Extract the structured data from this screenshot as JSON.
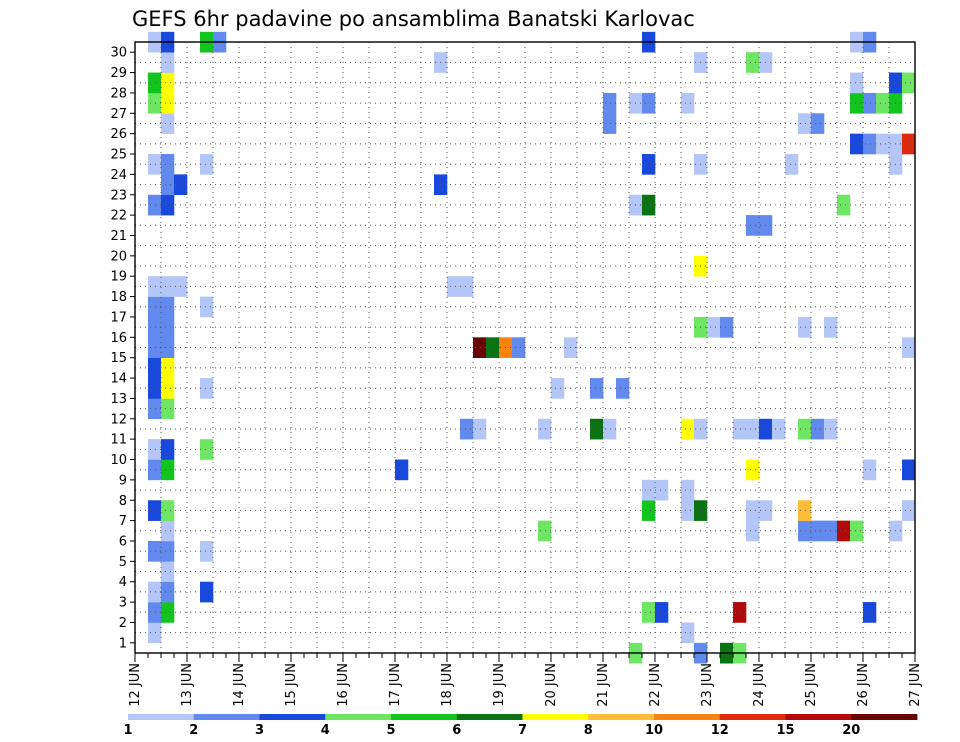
{
  "chart_data": {
    "type": "heatmap",
    "title": "GEFS 6hr padavine po ansamblima Banatski Karlovac",
    "xlabel": "",
    "ylabel": "",
    "x_tick_labels": [
      "12 JUN",
      "13 JUN",
      "14 JUN",
      "15 JUN",
      "16 JUN",
      "17 JUN",
      "18 JUN",
      "19 JUN",
      "20 JUN",
      "21 JUN",
      "22 JUN",
      "23 JUN",
      "24 JUN",
      "25 JUN",
      "26 JUN",
      "27 JUN"
    ],
    "y_tick_labels": [
      "1",
      "2",
      "3",
      "4",
      "5",
      "6",
      "7",
      "8",
      "9",
      "10",
      "11",
      "12",
      "13",
      "14",
      "15",
      "16",
      "17",
      "18",
      "19",
      "20",
      "21",
      "22",
      "23",
      "24",
      "25",
      "26",
      "27",
      "28",
      "29",
      "30"
    ],
    "x_range_steps": [
      0,
      60
    ],
    "y_range": [
      0,
      30
    ],
    "grid": true,
    "legend_placement": "bottom",
    "colorbar": {
      "labels": [
        "1",
        "2",
        "3",
        "4",
        "5",
        "6",
        "7",
        "8",
        "10",
        "12",
        "15",
        "20"
      ],
      "colors": [
        "#b3c6f7",
        "#6189ee",
        "#1848dc",
        "#6ee663",
        "#12c51d",
        "#0b7314",
        "#ffff00",
        "#ffbd39",
        "#f98311",
        "#dd2b0e",
        "#b00a0a",
        "#6a0404"
      ]
    },
    "value_encoding": "z = colour class index 1-12 (1 = 1-2 mm ... 12 = over 20 mm); x = 6-hour step from 12 JUN 00Z; y = ensemble member",
    "cells": [
      {
        "x": 1,
        "y": 1,
        "z": 1
      },
      {
        "x": 1,
        "y": 2,
        "z": 2
      },
      {
        "x": 2,
        "y": 2,
        "z": 5
      },
      {
        "x": 1,
        "y": 3,
        "z": 1
      },
      {
        "x": 2,
        "y": 3,
        "z": 2
      },
      {
        "x": 2,
        "y": 4,
        "z": 1
      },
      {
        "x": 1,
        "y": 5,
        "z": 2
      },
      {
        "x": 2,
        "y": 5,
        "z": 2
      },
      {
        "x": 2,
        "y": 6,
        "z": 1
      },
      {
        "x": 1,
        "y": 7,
        "z": 3
      },
      {
        "x": 2,
        "y": 7,
        "z": 4
      },
      {
        "x": 1,
        "y": 9,
        "z": 2
      },
      {
        "x": 2,
        "y": 9,
        "z": 5
      },
      {
        "x": 1,
        "y": 10,
        "z": 1
      },
      {
        "x": 2,
        "y": 10,
        "z": 3
      },
      {
        "x": 1,
        "y": 12,
        "z": 2
      },
      {
        "x": 2,
        "y": 12,
        "z": 4
      },
      {
        "x": 1,
        "y": 13,
        "z": 3
      },
      {
        "x": 2,
        "y": 13,
        "z": 7
      },
      {
        "x": 1,
        "y": 14,
        "z": 3
      },
      {
        "x": 2,
        "y": 14,
        "z": 7
      },
      {
        "x": 1,
        "y": 15,
        "z": 2
      },
      {
        "x": 2,
        "y": 15,
        "z": 2
      },
      {
        "x": 1,
        "y": 16,
        "z": 2
      },
      {
        "x": 2,
        "y": 16,
        "z": 2
      },
      {
        "x": 1,
        "y": 17,
        "z": 2
      },
      {
        "x": 2,
        "y": 17,
        "z": 2
      },
      {
        "x": 1,
        "y": 18,
        "z": 1
      },
      {
        "x": 2,
        "y": 18,
        "z": 1
      },
      {
        "x": 3,
        "y": 18,
        "z": 1
      },
      {
        "x": 1,
        "y": 22,
        "z": 2
      },
      {
        "x": 2,
        "y": 22,
        "z": 3
      },
      {
        "x": 2,
        "y": 23,
        "z": 2
      },
      {
        "x": 3,
        "y": 23,
        "z": 3
      },
      {
        "x": 1,
        "y": 24,
        "z": 1
      },
      {
        "x": 2,
        "y": 24,
        "z": 2
      },
      {
        "x": 2,
        "y": 26,
        "z": 1
      },
      {
        "x": 1,
        "y": 27,
        "z": 4
      },
      {
        "x": 2,
        "y": 27,
        "z": 7
      },
      {
        "x": 1,
        "y": 28,
        "z": 5
      },
      {
        "x": 2,
        "y": 28,
        "z": 7
      },
      {
        "x": 2,
        "y": 29,
        "z": 1
      },
      {
        "x": 1,
        "y": 30,
        "z": 1
      },
      {
        "x": 2,
        "y": 30,
        "z": 3
      },
      {
        "x": 5,
        "y": 3,
        "z": 3
      },
      {
        "x": 5,
        "y": 5,
        "z": 1
      },
      {
        "x": 5,
        "y": 10,
        "z": 4
      },
      {
        "x": 5,
        "y": 13,
        "z": 1
      },
      {
        "x": 5,
        "y": 17,
        "z": 1
      },
      {
        "x": 5,
        "y": 24,
        "z": 1
      },
      {
        "x": 5,
        "y": 30,
        "z": 5
      },
      {
        "x": 6,
        "y": 30,
        "z": 2
      },
      {
        "x": 20,
        "y": 9,
        "z": 3
      },
      {
        "x": 23,
        "y": 23,
        "z": 3
      },
      {
        "x": 23,
        "y": 29,
        "z": 1
      },
      {
        "x": 24,
        "y": 18,
        "z": 1
      },
      {
        "x": 25,
        "y": 18,
        "z": 1
      },
      {
        "x": 25,
        "y": 11,
        "z": 2
      },
      {
        "x": 26,
        "y": 11,
        "z": 1
      },
      {
        "x": 26,
        "y": 15,
        "z": 12
      },
      {
        "x": 27,
        "y": 15,
        "z": 6
      },
      {
        "x": 28,
        "y": 15,
        "z": 9
      },
      {
        "x": 29,
        "y": 15,
        "z": 2
      },
      {
        "x": 31,
        "y": 6,
        "z": 4
      },
      {
        "x": 31,
        "y": 11,
        "z": 1
      },
      {
        "x": 32,
        "y": 13,
        "z": 1
      },
      {
        "x": 33,
        "y": 15,
        "z": 1
      },
      {
        "x": 35,
        "y": 11,
        "z": 6
      },
      {
        "x": 35,
        "y": 13,
        "z": 2
      },
      {
        "x": 36,
        "y": 11,
        "z": 1
      },
      {
        "x": 36,
        "y": 26,
        "z": 2
      },
      {
        "x": 36,
        "y": 27,
        "z": 2
      },
      {
        "x": 37,
        "y": 13,
        "z": 2
      },
      {
        "x": 38,
        "y": 0,
        "z": 4
      },
      {
        "x": 38,
        "y": 22,
        "z": 1
      },
      {
        "x": 38,
        "y": 27,
        "z": 1
      },
      {
        "x": 39,
        "y": 2,
        "z": 4
      },
      {
        "x": 39,
        "y": 7,
        "z": 5
      },
      {
        "x": 39,
        "y": 8,
        "z": 1
      },
      {
        "x": 39,
        "y": 22,
        "z": 6
      },
      {
        "x": 39,
        "y": 24,
        "z": 3
      },
      {
        "x": 39,
        "y": 27,
        "z": 2
      },
      {
        "x": 39,
        "y": 30,
        "z": 3
      },
      {
        "x": 40,
        "y": 2,
        "z": 3
      },
      {
        "x": 40,
        "y": 8,
        "z": 1
      },
      {
        "x": 42,
        "y": 1,
        "z": 1
      },
      {
        "x": 42,
        "y": 7,
        "z": 1
      },
      {
        "x": 42,
        "y": 8,
        "z": 1
      },
      {
        "x": 42,
        "y": 11,
        "z": 7
      },
      {
        "x": 42,
        "y": 27,
        "z": 1
      },
      {
        "x": 43,
        "y": 0,
        "z": 2
      },
      {
        "x": 43,
        "y": 7,
        "z": 6
      },
      {
        "x": 43,
        "y": 11,
        "z": 1
      },
      {
        "x": 43,
        "y": 16,
        "z": 4
      },
      {
        "x": 43,
        "y": 19,
        "z": 7
      },
      {
        "x": 43,
        "y": 24,
        "z": 1
      },
      {
        "x": 43,
        "y": 29,
        "z": 1
      },
      {
        "x": 44,
        "y": 16,
        "z": 1
      },
      {
        "x": 45,
        "y": 0,
        "z": 6
      },
      {
        "x": 45,
        "y": 16,
        "z": 2
      },
      {
        "x": 46,
        "y": 0,
        "z": 4
      },
      {
        "x": 46,
        "y": 2,
        "z": 11
      },
      {
        "x": 46,
        "y": 11,
        "z": 1
      },
      {
        "x": 47,
        "y": 6,
        "z": 1
      },
      {
        "x": 47,
        "y": 7,
        "z": 1
      },
      {
        "x": 47,
        "y": 9,
        "z": 7
      },
      {
        "x": 47,
        "y": 11,
        "z": 1
      },
      {
        "x": 47,
        "y": 21,
        "z": 2
      },
      {
        "x": 47,
        "y": 29,
        "z": 4
      },
      {
        "x": 48,
        "y": 7,
        "z": 1
      },
      {
        "x": 48,
        "y": 11,
        "z": 3
      },
      {
        "x": 48,
        "y": 21,
        "z": 2
      },
      {
        "x": 48,
        "y": 29,
        "z": 1
      },
      {
        "x": 49,
        "y": 11,
        "z": 1
      },
      {
        "x": 50,
        "y": 24,
        "z": 1
      },
      {
        "x": 51,
        "y": 6,
        "z": 2
      },
      {
        "x": 51,
        "y": 7,
        "z": 8
      },
      {
        "x": 51,
        "y": 11,
        "z": 4
      },
      {
        "x": 51,
        "y": 16,
        "z": 1
      },
      {
        "x": 51,
        "y": 26,
        "z": 1
      },
      {
        "x": 52,
        "y": 6,
        "z": 2
      },
      {
        "x": 52,
        "y": 11,
        "z": 2
      },
      {
        "x": 52,
        "y": 26,
        "z": 2
      },
      {
        "x": 53,
        "y": 6,
        "z": 2
      },
      {
        "x": 53,
        "y": 11,
        "z": 1
      },
      {
        "x": 53,
        "y": 16,
        "z": 1
      },
      {
        "x": 54,
        "y": 6,
        "z": 11
      },
      {
        "x": 54,
        "y": 22,
        "z": 4
      },
      {
        "x": 55,
        "y": 6,
        "z": 4
      },
      {
        "x": 55,
        "y": 25,
        "z": 3
      },
      {
        "x": 55,
        "y": 27,
        "z": 5
      },
      {
        "x": 55,
        "y": 28,
        "z": 1
      },
      {
        "x": 55,
        "y": 30,
        "z": 1
      },
      {
        "x": 56,
        "y": 2,
        "z": 3
      },
      {
        "x": 56,
        "y": 9,
        "z": 1
      },
      {
        "x": 56,
        "y": 25,
        "z": 2
      },
      {
        "x": 56,
        "y": 27,
        "z": 2
      },
      {
        "x": 56,
        "y": 30,
        "z": 2
      },
      {
        "x": 57,
        "y": 25,
        "z": 1
      },
      {
        "x": 57,
        "y": 27,
        "z": 4
      },
      {
        "x": 58,
        "y": 6,
        "z": 1
      },
      {
        "x": 58,
        "y": 24,
        "z": 1
      },
      {
        "x": 58,
        "y": 25,
        "z": 1
      },
      {
        "x": 58,
        "y": 27,
        "z": 5
      },
      {
        "x": 58,
        "y": 28,
        "z": 3
      },
      {
        "x": 59,
        "y": 7,
        "z": 1
      },
      {
        "x": 59,
        "y": 9,
        "z": 3
      },
      {
        "x": 59,
        "y": 15,
        "z": 1
      },
      {
        "x": 59,
        "y": 25,
        "z": 10
      },
      {
        "x": 59,
        "y": 28,
        "z": 4
      }
    ]
  }
}
